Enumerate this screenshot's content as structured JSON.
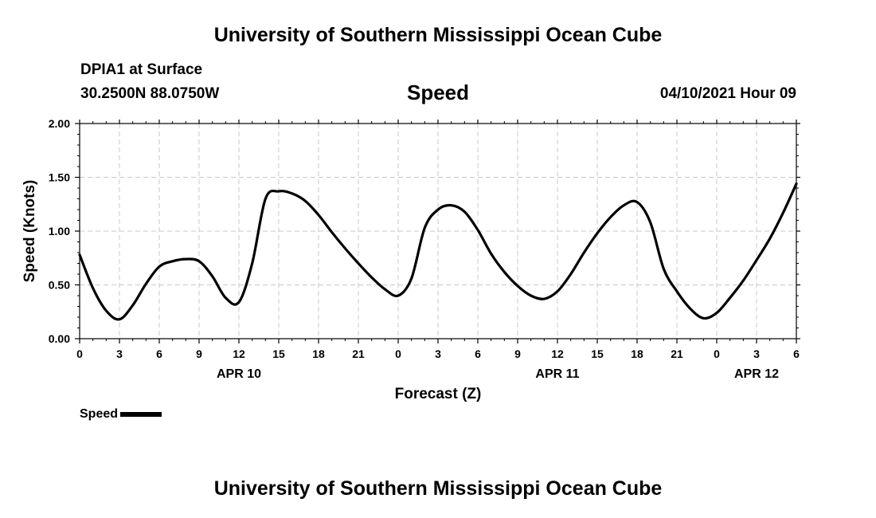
{
  "header": {
    "title": "University of Southern Mississippi Ocean Cube",
    "station": "DPIA1 at Surface",
    "coords": "30.2500N  88.0750W",
    "chart_title": "Speed",
    "date": "04/10/2021 Hour 09"
  },
  "footer": {
    "title": "University of Southern Mississippi Ocean Cube"
  },
  "legend": {
    "label": "Speed",
    "color": "#000000"
  },
  "chart_data": {
    "type": "line",
    "title": "Speed",
    "xlabel": "Forecast (Z)",
    "ylabel": "Speed (Knots)",
    "xlim": [
      0,
      54
    ],
    "ylim": [
      0,
      2
    ],
    "grid": true,
    "legend_position": "bottom-left",
    "x_ticks": [
      0,
      3,
      6,
      9,
      12,
      15,
      18,
      21,
      24,
      27,
      30,
      33,
      36,
      39,
      42,
      45,
      48,
      51,
      54
    ],
    "x_tick_labels": [
      "0",
      "3",
      "6",
      "9",
      "12",
      "15",
      "18",
      "21",
      "0",
      "3",
      "6",
      "9",
      "12",
      "15",
      "18",
      "21",
      "0",
      "3",
      "6"
    ],
    "y_ticks": [
      0,
      0.5,
      1,
      1.5,
      2
    ],
    "y_tick_labels": [
      "0.00",
      "0.50",
      "1.00",
      "1.50",
      "2.00"
    ],
    "day_labels": [
      {
        "x": 12,
        "label": "APR 10"
      },
      {
        "x": 36,
        "label": "APR 11"
      },
      {
        "x": 51,
        "label": "APR 12"
      }
    ],
    "series": [
      {
        "name": "Speed",
        "color": "#000000",
        "x": [
          0,
          1,
          2,
          3,
          4,
          5,
          6,
          7,
          8,
          9,
          10,
          11,
          12,
          13,
          14,
          15,
          16,
          17,
          18,
          19,
          20,
          21,
          22,
          23,
          24,
          25,
          26,
          27,
          28,
          29,
          30,
          31,
          32,
          33,
          34,
          35,
          36,
          37,
          38,
          39,
          40,
          41,
          42,
          43,
          44,
          45,
          46,
          47,
          48,
          49,
          50,
          51,
          52,
          53,
          54
        ],
        "values": [
          0.78,
          0.47,
          0.26,
          0.18,
          0.31,
          0.51,
          0.67,
          0.72,
          0.74,
          0.72,
          0.58,
          0.38,
          0.34,
          0.7,
          1.3,
          1.37,
          1.35,
          1.28,
          1.15,
          0.99,
          0.84,
          0.7,
          0.57,
          0.46,
          0.4,
          0.56,
          1.03,
          1.2,
          1.24,
          1.18,
          1.01,
          0.79,
          0.62,
          0.49,
          0.4,
          0.37,
          0.44,
          0.6,
          0.8,
          0.98,
          1.13,
          1.24,
          1.27,
          1.08,
          0.65,
          0.44,
          0.28,
          0.19,
          0.24,
          0.38,
          0.54,
          0.73,
          0.93,
          1.17,
          1.44
        ]
      }
    ]
  }
}
